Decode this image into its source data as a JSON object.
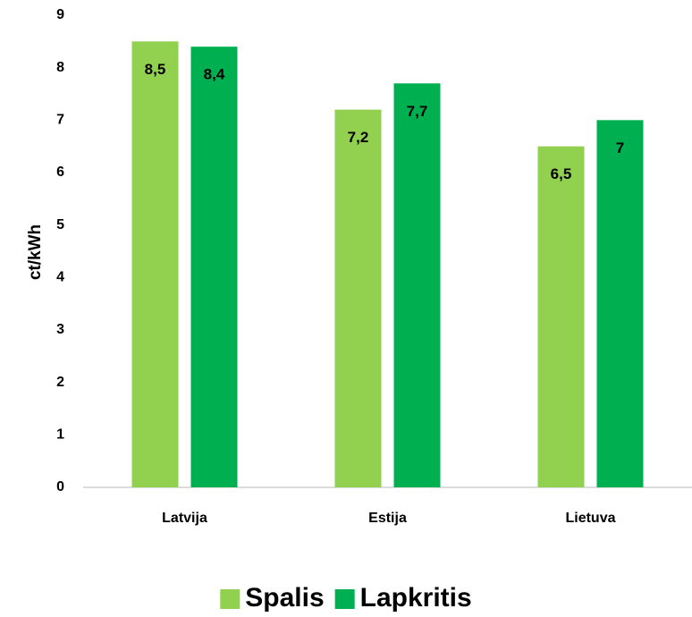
{
  "chart_data": {
    "type": "bar",
    "y_label": "ct/kWh",
    "categories": [
      "Latvija",
      "Estija",
      "Lietuva"
    ],
    "series": [
      {
        "name": "Spalis",
        "color": "#92d050",
        "values": [
          8.5,
          7.2,
          6.5
        ],
        "value_labels": [
          "8,5",
          "7,2",
          "6,5"
        ]
      },
      {
        "name": "Lapkritis",
        "color": "#00b050",
        "values": [
          8.4,
          7.7,
          7
        ],
        "value_labels": [
          "8,4",
          "7,7",
          "7"
        ]
      }
    ],
    "ylim": [
      0,
      9
    ],
    "yticks": [
      0,
      1,
      2,
      3,
      4,
      5,
      6,
      7,
      8,
      9
    ],
    "grid": false
  }
}
